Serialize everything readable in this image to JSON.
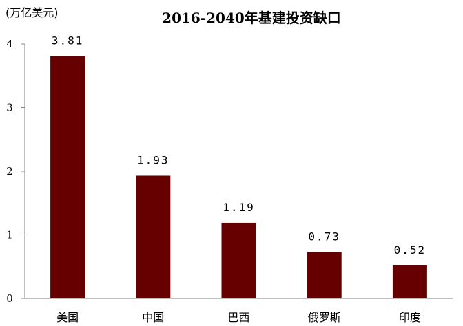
{
  "chart_data": {
    "type": "bar",
    "title": "2016-2040年基建投资缺口",
    "ylabel": "(万亿美元)",
    "xlabel": "",
    "categories": [
      "美国",
      "中国",
      "巴西",
      "俄罗斯",
      "印度"
    ],
    "values": [
      3.81,
      1.93,
      1.19,
      0.73,
      0.52
    ],
    "data_labels": [
      "3.81",
      "1.93",
      "1.19",
      "0.73",
      "0.52"
    ],
    "ylim": [
      0,
      4
    ],
    "yticks": [
      "0",
      "1",
      "2",
      "3",
      "4"
    ],
    "grid": false,
    "legend": "none",
    "bar_color": "#660000"
  }
}
